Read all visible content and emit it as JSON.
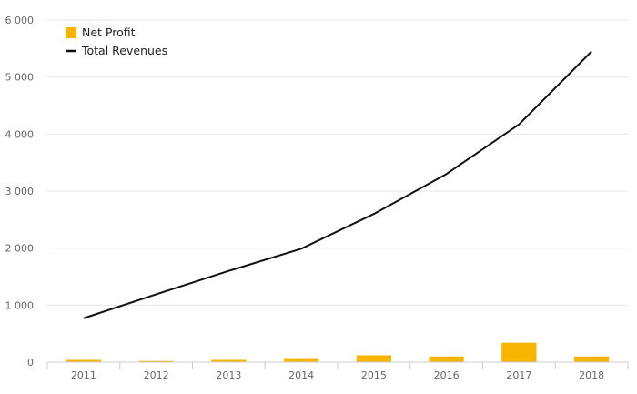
{
  "chart_data": {
    "type": "bar",
    "categories": [
      "2011",
      "2012",
      "2013",
      "2014",
      "2015",
      "2016",
      "2017",
      "2018"
    ],
    "ylim": [
      0,
      6000
    ],
    "yticks": [
      0,
      1000,
      2000,
      3000,
      4000,
      5000,
      6000
    ],
    "ytick_labels": [
      "0",
      "1 000",
      "2 000",
      "3 000",
      "4 000",
      "5 000",
      "6 000"
    ],
    "grid": true,
    "legend_position": "top-left",
    "series": [
      {
        "name": "Net Profit",
        "type": "bar",
        "color": "#F7B500",
        "values": [
          40,
          20,
          40,
          70,
          120,
          100,
          340,
          100
        ]
      },
      {
        "name": "Total Revenues",
        "type": "line",
        "color": "#111111",
        "values": [
          770,
          1190,
          1600,
          1990,
          2600,
          3300,
          4170,
          5450
        ]
      }
    ]
  }
}
